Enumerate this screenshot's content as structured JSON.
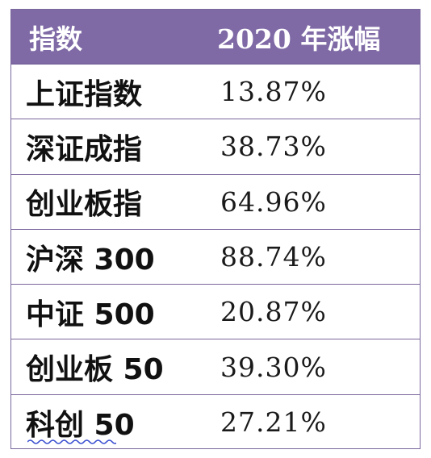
{
  "header": {
    "col_name": "指数",
    "col_value": "2020 年涨幅"
  },
  "rows": [
    {
      "name": "上证指数",
      "value": "13.87%"
    },
    {
      "name": "深证成指",
      "value": "38.73%"
    },
    {
      "name": "创业板指",
      "value": "64.96%"
    },
    {
      "name": "沪深 300",
      "value": "88.74%"
    },
    {
      "name": "中证 500",
      "value": "20.87%"
    },
    {
      "name": "创业板 50",
      "value": "39.30%"
    },
    {
      "name": "科创 50",
      "value": "27.21%"
    }
  ],
  "colors": {
    "header_bg": "#7f6aa6",
    "border": "#7a679c",
    "spellcheck_underline": "#3a4fd0"
  }
}
